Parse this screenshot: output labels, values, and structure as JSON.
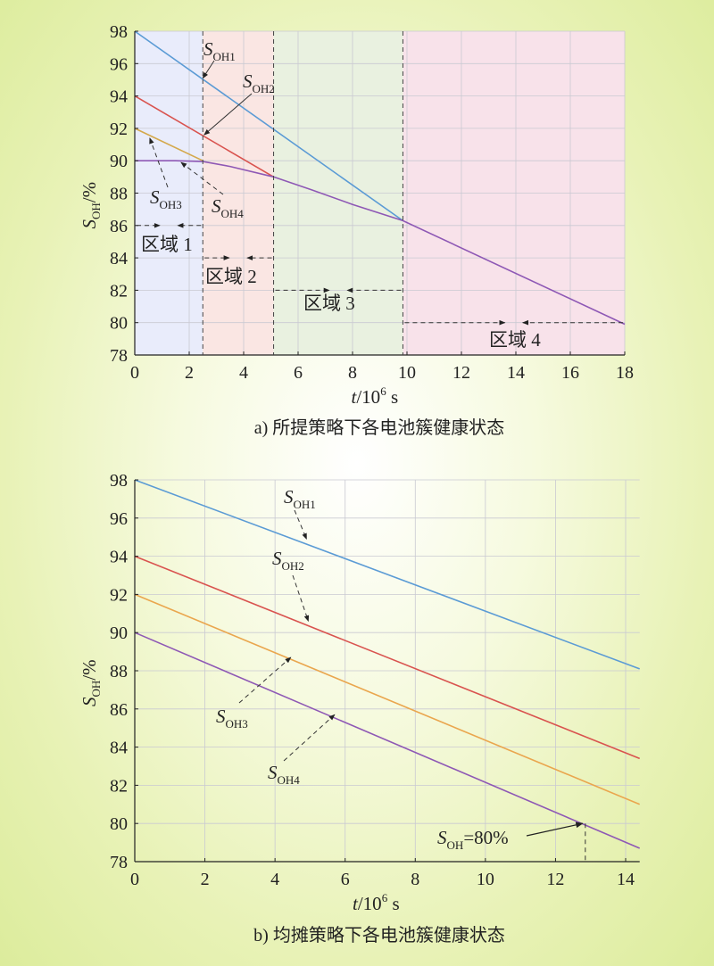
{
  "chart_data": [
    {
      "type": "line",
      "caption": "a) 所提策略下各电池簇健康状态",
      "xlabel": {
        "var": "t",
        "unit": "/10",
        "exp": "6",
        "tail": " s"
      },
      "ylabel": {
        "var": "S",
        "sub": "OH",
        "unit": "/%"
      },
      "xlim": [
        0,
        18
      ],
      "ylim": [
        78,
        98
      ],
      "xticks": [
        0,
        2,
        4,
        6,
        8,
        10,
        12,
        14,
        16,
        18
      ],
      "yticks": [
        78,
        80,
        82,
        84,
        86,
        88,
        90,
        92,
        94,
        96,
        98
      ],
      "regions": [
        {
          "label": "区域 1",
          "x": [
            0,
            2.5
          ],
          "color": "#e9ecfb"
        },
        {
          "label": "区域 2",
          "x": [
            2.5,
            5.1
          ],
          "color": "#fae6e3"
        },
        {
          "label": "区域 3",
          "x": [
            5.1,
            9.85
          ],
          "color": "#e9f1e0"
        },
        {
          "label": "区域 4",
          "x": [
            9.85,
            18
          ],
          "color": "#f8e2ea"
        }
      ],
      "series": [
        {
          "name": "SOH1",
          "color": "#5b9bd5",
          "x": [
            0,
            9.85
          ],
          "y": [
            98,
            86.3
          ]
        },
        {
          "name": "SOH2",
          "color": "#d9534f",
          "x": [
            0,
            5.1
          ],
          "y": [
            94,
            89
          ]
        },
        {
          "name": "SOH3",
          "color": "#d4a84b",
          "x": [
            0,
            2.5
          ],
          "y": [
            92,
            90
          ]
        },
        {
          "name": "SOH4",
          "color": "#8e58b5",
          "x": [
            0,
            1.5,
            2.5,
            3.5,
            5.1,
            6.5,
            8,
            9.85,
            18
          ],
          "y": [
            90,
            90,
            89.95,
            89.65,
            89,
            88.2,
            87.3,
            86.3,
            79.9
          ]
        }
      ],
      "labels": [
        {
          "text": "S",
          "sub": "OH1"
        },
        {
          "text": "S",
          "sub": "OH2"
        },
        {
          "text": "S",
          "sub": "OH3"
        },
        {
          "text": "S",
          "sub": "OH4"
        }
      ]
    },
    {
      "type": "line",
      "caption": "b) 均摊策略下各电池簇健康状态",
      "xlabel": {
        "var": "t",
        "unit": "/10",
        "exp": "6",
        "tail": " s"
      },
      "ylabel": {
        "var": "S",
        "sub": "OH",
        "unit": "/%"
      },
      "xlim": [
        0,
        14
      ],
      "ylim": [
        78,
        98
      ],
      "xticks": [
        0,
        2,
        4,
        6,
        8,
        10,
        12,
        14
      ],
      "yticks": [
        78,
        80,
        82,
        84,
        86,
        88,
        90,
        92,
        94,
        96,
        98
      ],
      "series": [
        {
          "name": "SOH1",
          "color": "#5b9bd5",
          "x": [
            0,
            14.4
          ],
          "y": [
            98,
            88.1
          ]
        },
        {
          "name": "SOH2",
          "color": "#d9534f",
          "x": [
            0,
            14.4
          ],
          "y": [
            94,
            83.4
          ]
        },
        {
          "name": "SOH3",
          "color": "#eaa64e",
          "x": [
            0,
            14.4
          ],
          "y": [
            92,
            81
          ]
        },
        {
          "name": "SOH4",
          "color": "#8e58b5",
          "x": [
            0,
            14.4
          ],
          "y": [
            90,
            78.7
          ]
        }
      ],
      "labels": [
        {
          "text": "S",
          "sub": "OH1"
        },
        {
          "text": "S",
          "sub": "OH2"
        },
        {
          "text": "S",
          "sub": "OH3"
        },
        {
          "text": "S",
          "sub": "OH4"
        }
      ],
      "annotation": {
        "text": "S",
        "sub": "OH",
        "value": "=80%",
        "x": 12.85,
        "y": 80
      }
    }
  ]
}
